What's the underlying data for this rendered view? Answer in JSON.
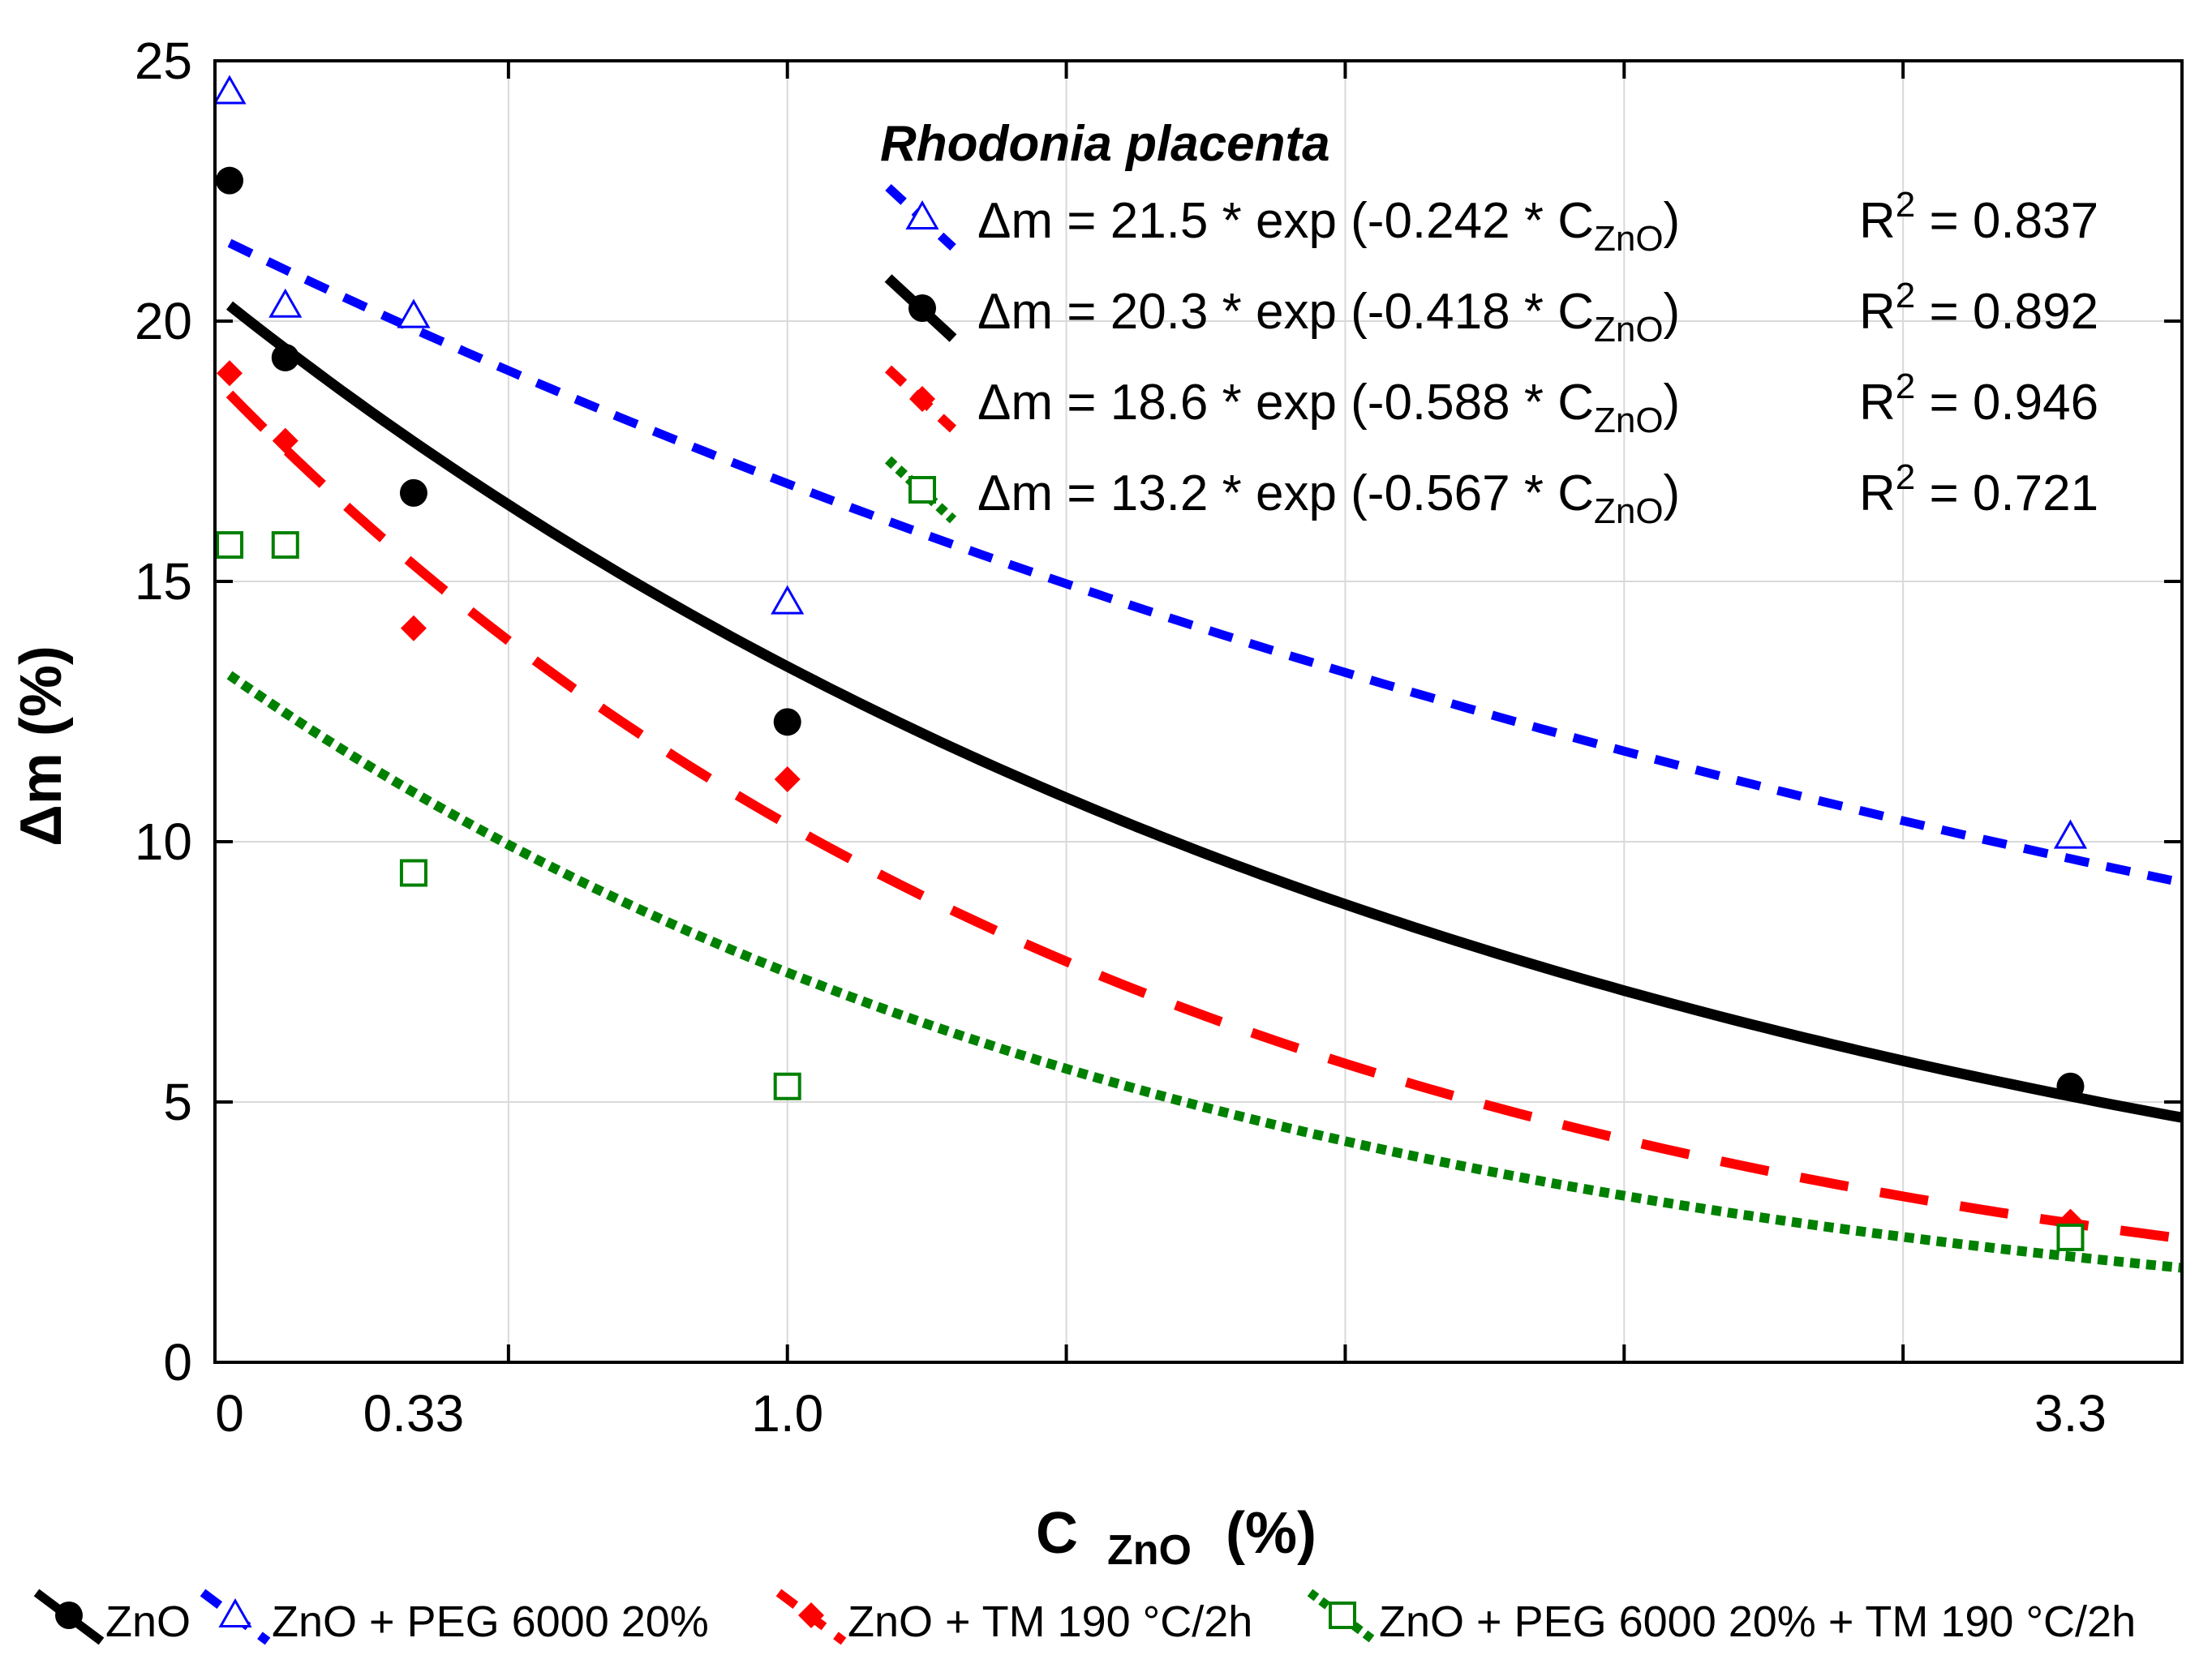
{
  "chart_data": {
    "type": "scatter",
    "ylabel": "Δm (%)",
    "xlabel_main": "C",
    "xlabel_sub": "ZnO",
    "xlabel_unit": "(%)",
    "xlim": [
      0,
      3.3
    ],
    "ylim": [
      0,
      25
    ],
    "yticks": [
      "0",
      "5",
      "10",
      "15",
      "20",
      "25"
    ],
    "xticks": [
      {
        "value": 0,
        "label": "0"
      },
      {
        "value": 0.33,
        "label": "0.33"
      },
      {
        "value": 1.0,
        "label": "1.0"
      },
      {
        "value": 3.3,
        "label": "3.3"
      }
    ],
    "grid": true,
    "annotation_title": "Rhodonia placenta",
    "equation_prefix": "Δm = ",
    "equation_var": "C",
    "equation_var_sub": "ZnO",
    "r2_prefix": "R",
    "r2_sup": "2",
    "series": [
      {
        "name": "ZnO +  PEG 6000 20%",
        "color": "#0000ff",
        "marker": "triangle",
        "line_style": "dash",
        "x": [
          0,
          0.1,
          0.33,
          1.0,
          3.3
        ],
        "y": [
          24.4,
          20.3,
          20.1,
          14.6,
          10.1
        ],
        "fit": {
          "a": 21.5,
          "b": -0.242
        },
        "eq_coeffs": "21.5 * exp (-0.242 * ",
        "r2_value": " = 0.837"
      },
      {
        "name": "ZnO",
        "color": "#000000",
        "marker": "circle",
        "line_style": "solid",
        "x": [
          0,
          0.1,
          0.33,
          1.0,
          3.3
        ],
        "y": [
          22.7,
          19.3,
          16.7,
          12.3,
          5.3
        ],
        "fit": {
          "a": 20.3,
          "b": -0.418
        },
        "eq_coeffs": "20.3 * exp (-0.418 * ",
        "r2_value": " = 0.892"
      },
      {
        "name": "ZnO + TM 190 °C/2h",
        "color": "#ff0000",
        "marker": "diamond",
        "line_style": "longdash",
        "x": [
          0,
          0.1,
          0.33,
          1.0,
          3.3
        ],
        "y": [
          19.0,
          17.7,
          14.1,
          11.2,
          2.7
        ],
        "fit": {
          "a": 18.6,
          "b": -0.588
        },
        "eq_coeffs": "18.6 * exp (-0.588 * ",
        "r2_value": " = 0.946"
      },
      {
        "name": "ZnO + PEG 6000 20% + TM 190 °C/2h",
        "color": "#008000",
        "marker": "square",
        "line_style": "dot",
        "x": [
          0,
          0.1,
          0.33,
          1.0,
          3.3
        ],
        "y": [
          15.7,
          15.7,
          9.4,
          5.3,
          2.4
        ],
        "fit": {
          "a": 13.2,
          "b": -0.567
        },
        "eq_coeffs": "13.2 * exp (-0.567 * ",
        "r2_value": " = 0.721"
      }
    ],
    "legend_order": [
      1,
      0,
      2,
      3
    ],
    "legend_placement": "bottom"
  }
}
